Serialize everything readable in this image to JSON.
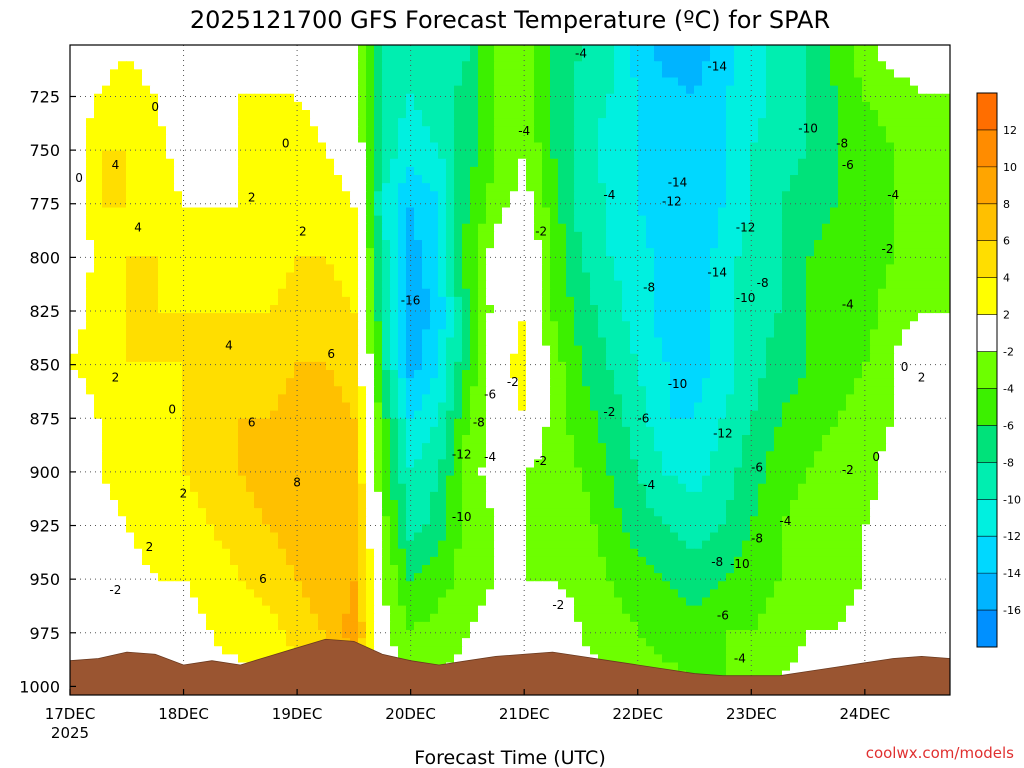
{
  "chart_data": {
    "type": "heatmap",
    "title": "2025121700 GFS Forecast Temperature (ºC) for SPAR",
    "xlabel": "Forecast Time (UTC)",
    "ylabel": "",
    "credit": "coolwx.com/models",
    "x_start_year": "2025",
    "x_ticks": [
      "17DEC",
      "18DEC",
      "19DEC",
      "20DEC",
      "21DEC",
      "22DEC",
      "23DEC",
      "24DEC"
    ],
    "x_range_days": [
      0,
      7.75
    ],
    "y_ticks": [
      725,
      750,
      775,
      800,
      825,
      850,
      875,
      900,
      925,
      950,
      975,
      1000
    ],
    "y_range_hpa": [
      701,
      1004
    ],
    "colorbar": {
      "labels": [
        "12",
        "10",
        "8",
        "6",
        "4",
        "2",
        "-2",
        "-4",
        "-6",
        "-8",
        "-10",
        "-12",
        "-14",
        "-16"
      ],
      "colors": [
        "#ff6e00",
        "#ff8c00",
        "#ffa500",
        "#ffc000",
        "#ffde00",
        "#ffff00",
        "#ffffff",
        "#6dff00",
        "#3cf000",
        "#00e27a",
        "#00eeb0",
        "#00f0e0",
        "#00d8ff",
        "#00b4ff",
        "#0090ff"
      ]
    },
    "levels_hpa": [
      705,
      725,
      750,
      775,
      800,
      825,
      850,
      875,
      900,
      925,
      950,
      975,
      1000
    ],
    "times_days": [
      0,
      0.25,
      0.5,
      0.75,
      1,
      1.25,
      1.5,
      1.75,
      2,
      2.25,
      2.5,
      2.75,
      3,
      3.25,
      3.5,
      3.75,
      4,
      4.25,
      4.5,
      4.75,
      5,
      5.25,
      5.5,
      5.75,
      6,
      6.25,
      6.5,
      6.75,
      7,
      7.25,
      7.5,
      7.75
    ],
    "temperature_c": [
      [
        -2,
        1,
        2,
        1,
        -2,
        -1,
        1,
        2,
        1,
        -1,
        -1,
        -8,
        -9,
        -10,
        -8,
        -4,
        -3,
        -6,
        -8,
        -9,
        -13,
        -15,
        -15,
        -13,
        -11,
        -9,
        -8,
        -5,
        -3,
        -1,
        -1,
        0
      ],
      [
        0,
        2,
        3,
        2,
        0,
        0,
        2,
        2,
        2,
        1,
        0,
        -9,
        -10,
        -9,
        -7,
        -4,
        -3,
        -6,
        -9,
        -10,
        -12,
        -13,
        -14,
        -12,
        -11,
        -9,
        -8,
        -6,
        -4,
        -3,
        -2,
        -2
      ],
      [
        0,
        4,
        4,
        3,
        1,
        1,
        2,
        2,
        3,
        2,
        1,
        -9,
        -11,
        -10,
        -7,
        -4,
        -2,
        -6,
        -9,
        -11,
        -12,
        -14,
        -13,
        -12,
        -10,
        -9,
        -8,
        -6,
        -5,
        -4,
        -3,
        -3
      ],
      [
        -1,
        4,
        4,
        3,
        2,
        2,
        2,
        3,
        3,
        3,
        2,
        -10,
        -14,
        -12,
        -6,
        -3,
        -1,
        -5,
        -9,
        -10,
        -12,
        -13,
        -13,
        -12,
        -10,
        -8,
        -7,
        -6,
        -5,
        -4,
        -3,
        -2
      ],
      [
        -1,
        3,
        4,
        4,
        3,
        3,
        3,
        3,
        4,
        4,
        3,
        -9,
        -15,
        -12,
        -5,
        -1,
        1,
        -4,
        -8,
        -10,
        -11,
        -13,
        -14,
        -11,
        -9,
        -8,
        -6,
        -5,
        -5,
        -4,
        -3,
        -2
      ],
      [
        1,
        3,
        4,
        4,
        4,
        4,
        4,
        4,
        5,
        5,
        4,
        -8,
        -16,
        -13,
        -6,
        -1,
        2,
        -4,
        -7,
        -9,
        -11,
        -13,
        -13,
        -11,
        -9,
        -8,
        -6,
        -5,
        -5,
        -3,
        -2,
        -2
      ],
      [
        2,
        3,
        4,
        4,
        4,
        5,
        5,
        5,
        6,
        6,
        5,
        -7,
        -15,
        -12,
        -6,
        1,
        3,
        -3,
        -6,
        -8,
        -10,
        -12,
        -13,
        -11,
        -9,
        -7,
        -6,
        -5,
        -4,
        -2,
        0,
        1
      ],
      [
        0,
        2,
        3,
        3,
        4,
        5,
        6,
        6,
        7,
        7,
        6,
        -5,
        -12,
        -10,
        -4,
        -1,
        2,
        -3,
        -5,
        -7,
        -9,
        -12,
        -12,
        -10,
        -8,
        -6,
        -5,
        -4,
        -3,
        -2,
        0,
        1
      ],
      [
        -1,
        2,
        3,
        3,
        4,
        5,
        6,
        7,
        8,
        8,
        7,
        -4,
        -10,
        -8,
        -3,
        -1,
        -2,
        -3,
        -4,
        -6,
        -8,
        -10,
        -11,
        -9,
        -7,
        -5,
        -4,
        -3,
        -3,
        -1,
        0,
        0
      ],
      [
        -2,
        1,
        2,
        3,
        3,
        4,
        5,
        6,
        7,
        8,
        8,
        -3,
        -9,
        -7,
        -3,
        -2,
        -2,
        -3,
        -3,
        -5,
        -7,
        -8,
        -9,
        -8,
        -6,
        -4,
        -3,
        -2,
        -2,
        -1,
        0,
        -1
      ],
      [
        -2,
        0,
        1,
        2,
        2,
        3,
        4,
        5,
        6,
        7,
        8,
        -2,
        -6,
        -5,
        -3,
        -2,
        -2,
        -2,
        -3,
        -4,
        -5,
        -6,
        -7,
        -6,
        -5,
        -4,
        -3,
        -3,
        -2,
        -1,
        -1,
        -1
      ],
      [
        -1,
        -1,
        0,
        1,
        1,
        2,
        3,
        3,
        5,
        6,
        9,
        -1,
        -4,
        -3,
        -2,
        -1,
        -1,
        1,
        -2,
        -3,
        -4,
        -5,
        -5,
        -4,
        -4,
        -3,
        -2,
        -2,
        -1,
        -1,
        0,
        0
      ],
      [
        -1,
        -1,
        0,
        0,
        0,
        1,
        1,
        2,
        3,
        4,
        4,
        -1,
        -2,
        -2,
        -1,
        -1,
        -1,
        0,
        -1,
        -2,
        -3,
        -3,
        -4,
        -4,
        -3,
        -2,
        -1,
        -1,
        0,
        0,
        0,
        0
      ]
    ],
    "terrain_hpa": [
      988,
      987,
      984,
      985,
      990,
      988,
      990,
      986,
      982,
      978,
      979,
      985,
      988,
      990,
      988,
      986,
      985,
      984,
      986,
      988,
      990,
      992,
      994,
      995,
      995,
      995,
      993,
      991,
      989,
      987,
      986,
      987
    ],
    "contour_labels": [
      {
        "t": 0.08,
        "p": 763,
        "text": "0"
      },
      {
        "t": 0.4,
        "p": 757,
        "text": "4"
      },
      {
        "t": 0.75,
        "p": 730,
        "text": "0"
      },
      {
        "t": 0.6,
        "p": 786,
        "text": "4"
      },
      {
        "t": 1.4,
        "p": 841,
        "text": "4"
      },
      {
        "t": 1.6,
        "p": 772,
        "text": "2"
      },
      {
        "t": 1.9,
        "p": 747,
        "text": "0"
      },
      {
        "t": 2.05,
        "p": 788,
        "text": "2"
      },
      {
        "t": 2.3,
        "p": 845,
        "text": "6"
      },
      {
        "t": 0.4,
        "p": 856,
        "text": "2"
      },
      {
        "t": 0.9,
        "p": 871,
        "text": "0"
      },
      {
        "t": 1.0,
        "p": 910,
        "text": "2"
      },
      {
        "t": 1.6,
        "p": 877,
        "text": "6"
      },
      {
        "t": 0.7,
        "p": 935,
        "text": "2"
      },
      {
        "t": 0.4,
        "p": 955,
        "text": "-2"
      },
      {
        "t": 2.0,
        "p": 905,
        "text": "8"
      },
      {
        "t": 1.7,
        "p": 950,
        "text": "6"
      },
      {
        "t": 3.0,
        "p": 820,
        "text": "-16"
      },
      {
        "t": 4.15,
        "p": 788,
        "text": "-2"
      },
      {
        "t": 4.0,
        "p": 741,
        "text": "-4"
      },
      {
        "t": 4.5,
        "p": 705,
        "text": "-4"
      },
      {
        "t": 3.7,
        "p": 864,
        "text": "-6"
      },
      {
        "t": 3.6,
        "p": 877,
        "text": "-8"
      },
      {
        "t": 3.45,
        "p": 892,
        "text": "-12"
      },
      {
        "t": 3.7,
        "p": 893,
        "text": "-4"
      },
      {
        "t": 3.9,
        "p": 858,
        "text": "-2"
      },
      {
        "t": 3.45,
        "p": 921,
        "text": "-10"
      },
      {
        "t": 4.15,
        "p": 895,
        "text": "-2"
      },
      {
        "t": 4.3,
        "p": 962,
        "text": "-2"
      },
      {
        "t": 4.75,
        "p": 771,
        "text": "-4"
      },
      {
        "t": 4.75,
        "p": 872,
        "text": "-2"
      },
      {
        "t": 5.05,
        "p": 875,
        "text": "-6"
      },
      {
        "t": 5.1,
        "p": 814,
        "text": "-8"
      },
      {
        "t": 5.3,
        "p": 774,
        "text": "-12"
      },
      {
        "t": 5.35,
        "p": 765,
        "text": "-14"
      },
      {
        "t": 5.1,
        "p": 906,
        "text": "-4"
      },
      {
        "t": 5.35,
        "p": 859,
        "text": "-10"
      },
      {
        "t": 5.7,
        "p": 711,
        "text": "-14"
      },
      {
        "t": 5.7,
        "p": 807,
        "text": "-14"
      },
      {
        "t": 5.75,
        "p": 882,
        "text": "-12"
      },
      {
        "t": 5.7,
        "p": 942,
        "text": "-8"
      },
      {
        "t": 5.75,
        "p": 967,
        "text": "-6"
      },
      {
        "t": 5.9,
        "p": 987,
        "text": "-4"
      },
      {
        "t": 5.95,
        "p": 786,
        "text": "-12"
      },
      {
        "t": 6.1,
        "p": 812,
        "text": "-8"
      },
      {
        "t": 5.95,
        "p": 819,
        "text": "-10"
      },
      {
        "t": 6.05,
        "p": 898,
        "text": "-6"
      },
      {
        "t": 6.05,
        "p": 931,
        "text": "-8"
      },
      {
        "t": 5.9,
        "p": 943,
        "text": "-10"
      },
      {
        "t": 6.3,
        "p": 923,
        "text": "-4"
      },
      {
        "t": 6.5,
        "p": 740,
        "text": "-10"
      },
      {
        "t": 6.8,
        "p": 747,
        "text": "-8"
      },
      {
        "t": 6.85,
        "p": 757,
        "text": "-6"
      },
      {
        "t": 7.25,
        "p": 771,
        "text": "-4"
      },
      {
        "t": 6.85,
        "p": 822,
        "text": "-4"
      },
      {
        "t": 7.2,
        "p": 796,
        "text": "-2"
      },
      {
        "t": 6.85,
        "p": 899,
        "text": "-2"
      },
      {
        "t": 7.1,
        "p": 893,
        "text": "0"
      },
      {
        "t": 7.35,
        "p": 851,
        "text": "0"
      },
      {
        "t": 7.5,
        "p": 856,
        "text": "2"
      }
    ]
  }
}
